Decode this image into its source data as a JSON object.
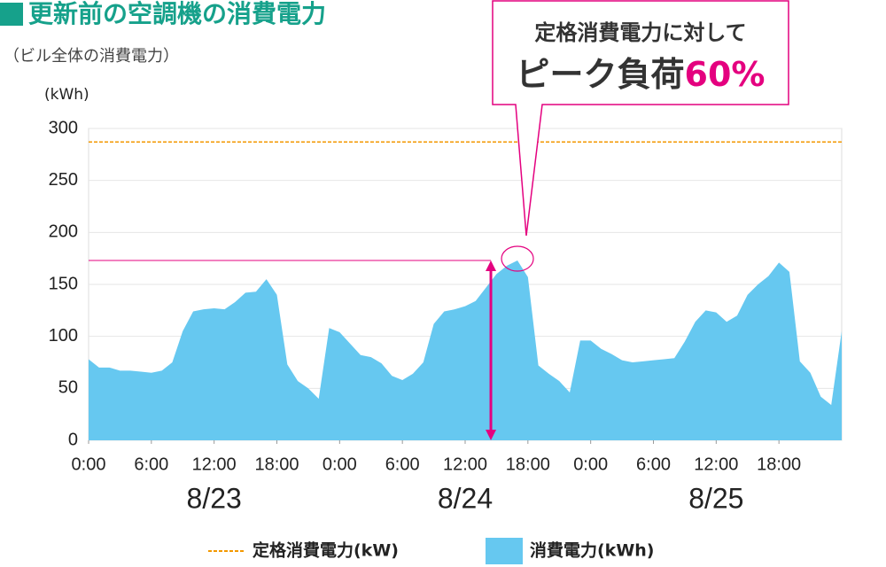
{
  "chart_data": {
    "type": "area",
    "title": "更新前の空調機の消費電力",
    "subtitle": "（ビル全体の消費電力）",
    "y_label": "(kWh)",
    "x": [
      0,
      1,
      2,
      3,
      4,
      5,
      6,
      7,
      8,
      9,
      10,
      11,
      12,
      13,
      14,
      15,
      16,
      17,
      18,
      19,
      20,
      21,
      22,
      23,
      24,
      25,
      26,
      27,
      28,
      29,
      30,
      31,
      32,
      33,
      34,
      35,
      36,
      37,
      38,
      39,
      40,
      41,
      42,
      43,
      44,
      45,
      46,
      47,
      48,
      49,
      50,
      51,
      52,
      53,
      54,
      55,
      56,
      57,
      58,
      59,
      60,
      61,
      62,
      63,
      64,
      65,
      66,
      67,
      68,
      69,
      70,
      71,
      72
    ],
    "series": [
      {
        "name": "消費電力(kWh)",
        "color": "#66c8f0",
        "values": [
          78,
          70,
          70,
          67,
          67,
          66,
          65,
          67,
          75,
          105,
          124,
          126,
          127,
          126,
          133,
          142,
          143,
          155,
          140,
          73,
          57,
          50,
          40,
          108,
          104,
          93,
          82,
          80,
          74,
          62,
          58,
          64,
          75,
          112,
          124,
          126,
          129,
          134,
          147,
          160,
          168,
          173,
          157,
          72,
          64,
          57,
          46,
          96,
          96,
          88,
          83,
          77,
          75,
          76,
          77,
          78,
          79,
          95,
          114,
          125,
          123,
          114,
          120,
          140,
          150,
          158,
          171,
          162,
          76,
          65,
          42,
          34,
          105
        ]
      }
    ],
    "reference_lines": [
      {
        "name": "定格消費電力(kW)",
        "value": 287,
        "color": "#f39800"
      }
    ],
    "xlim": [
      0,
      72
    ],
    "ylim": [
      0,
      300
    ],
    "yticks": [
      0,
      50,
      100,
      150,
      200,
      250,
      300
    ],
    "xticks": [
      {
        "value": 0,
        "label": "0:00"
      },
      {
        "value": 6,
        "label": "6:00"
      },
      {
        "value": 12,
        "label": "12:00"
      },
      {
        "value": 18,
        "label": "18:00"
      },
      {
        "value": 24,
        "label": "0:00"
      },
      {
        "value": 30,
        "label": "6:00"
      },
      {
        "value": 36,
        "label": "12:00"
      },
      {
        "value": 42,
        "label": "18:00"
      },
      {
        "value": 48,
        "label": "0:00"
      },
      {
        "value": 54,
        "label": "6:00"
      },
      {
        "value": 60,
        "label": "12:00"
      },
      {
        "value": 66,
        "label": "18:00"
      }
    ],
    "day_labels": [
      {
        "value": 12,
        "label": "8/23"
      },
      {
        "value": 36,
        "label": "8/24"
      },
      {
        "value": 60,
        "label": "8/25"
      }
    ],
    "grid": true,
    "callout": {
      "line1": "定格消費電力に対して",
      "line2": "ピーク負荷",
      "percent": "60%",
      "color": "#e4007f"
    }
  }
}
